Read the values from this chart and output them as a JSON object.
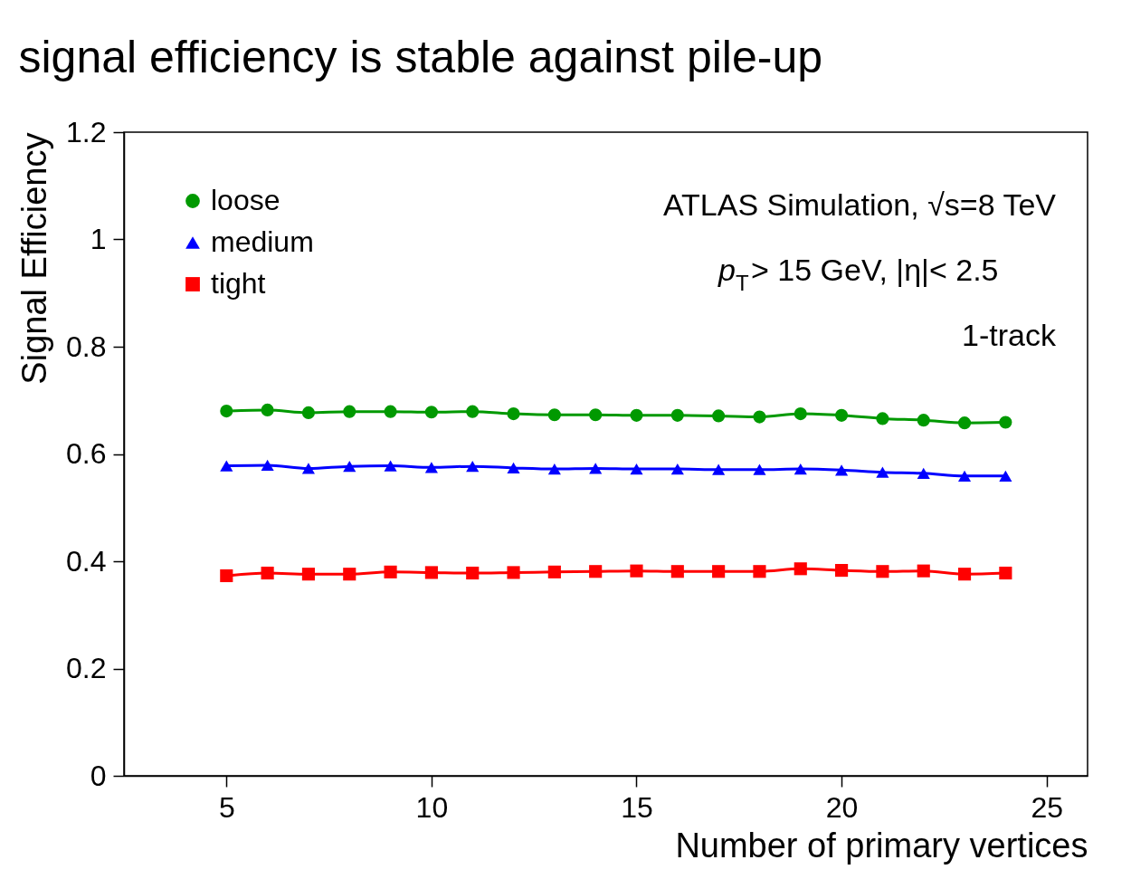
{
  "chart_data": {
    "type": "line",
    "title": "signal efficiency is stable against pile-up",
    "xlabel": "Number of primary vertices",
    "ylabel": "Signal Efficiency",
    "x": [
      5,
      6,
      7,
      8,
      9,
      10,
      11,
      12,
      13,
      14,
      15,
      16,
      17,
      18,
      19,
      20,
      21,
      22,
      23,
      24
    ],
    "series": [
      {
        "name": "loose",
        "color": "#009900",
        "marker": "circle",
        "values": [
          0.68,
          0.682,
          0.677,
          0.679,
          0.679,
          0.678,
          0.679,
          0.675,
          0.673,
          0.673,
          0.672,
          0.672,
          0.671,
          0.669,
          0.675,
          0.672,
          0.666,
          0.663,
          0.658,
          0.659
        ]
      },
      {
        "name": "medium",
        "color": "#0000ff",
        "marker": "triangle",
        "values": [
          0.578,
          0.579,
          0.573,
          0.577,
          0.578,
          0.575,
          0.577,
          0.574,
          0.572,
          0.573,
          0.572,
          0.572,
          0.571,
          0.571,
          0.572,
          0.57,
          0.566,
          0.564,
          0.559,
          0.559
        ]
      },
      {
        "name": "tight",
        "color": "#ff0000",
        "marker": "square",
        "values": [
          0.373,
          0.378,
          0.376,
          0.376,
          0.38,
          0.379,
          0.378,
          0.379,
          0.38,
          0.381,
          0.382,
          0.381,
          0.381,
          0.381,
          0.386,
          0.383,
          0.381,
          0.382,
          0.376,
          0.378
        ]
      }
    ],
    "xlim": [
      2.5,
      26
    ],
    "xticks": [
      5,
      10,
      15,
      20,
      25
    ],
    "ylim": [
      0,
      1.2
    ],
    "yticks": [
      0,
      0.2,
      0.4,
      0.6,
      0.8,
      1,
      1.2
    ],
    "annotations": [
      "ATLAS Simulation, √s=8 TeV",
      "p$_{T}$> 15 GeV, |η|< 2.5",
      "1-track"
    ],
    "grid": false,
    "legend": "top left",
    "line_style": "solid"
  }
}
